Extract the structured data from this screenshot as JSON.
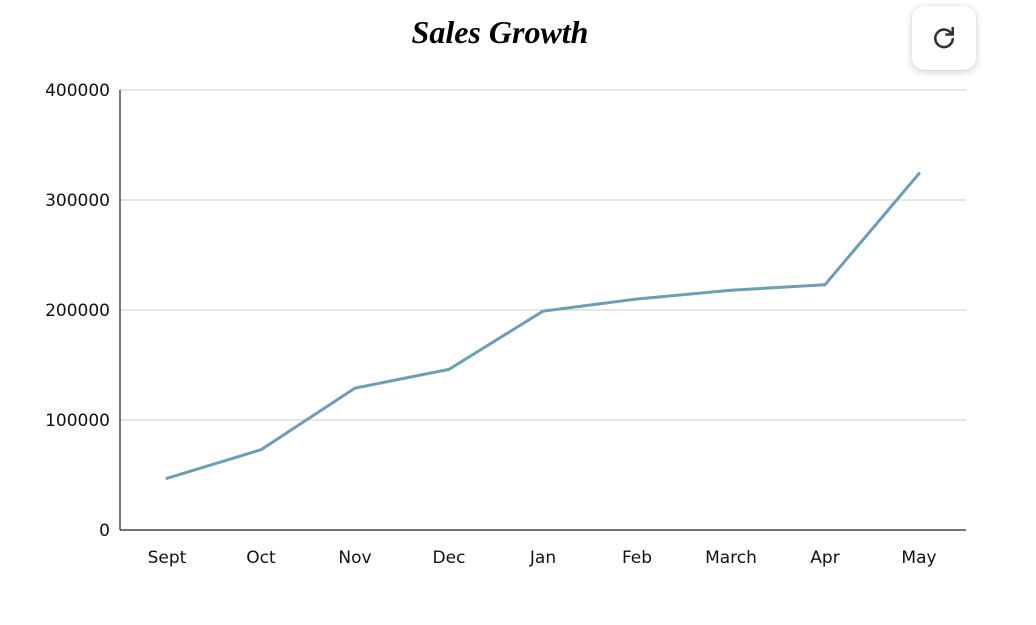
{
  "chart_data": {
    "type": "line",
    "title": "Sales Growth",
    "xlabel": "",
    "ylabel": "",
    "categories": [
      "Sept",
      "Oct",
      "Nov",
      "Dec",
      "Jan",
      "Feb",
      "March",
      "Apr",
      "May"
    ],
    "series": [
      {
        "name": "Sales",
        "color": "#6a9fb5",
        "values": [
          47000,
          73000,
          129000,
          146000,
          199000,
          210000,
          218000,
          223000,
          324000
        ]
      }
    ],
    "ylim": [
      0,
      400000
    ],
    "yticks": [
      "0",
      "100000",
      "200000",
      "300000",
      "400000"
    ],
    "grid": true,
    "legend": "none"
  },
  "controls": {
    "refresh_icon": "refresh-icon"
  }
}
